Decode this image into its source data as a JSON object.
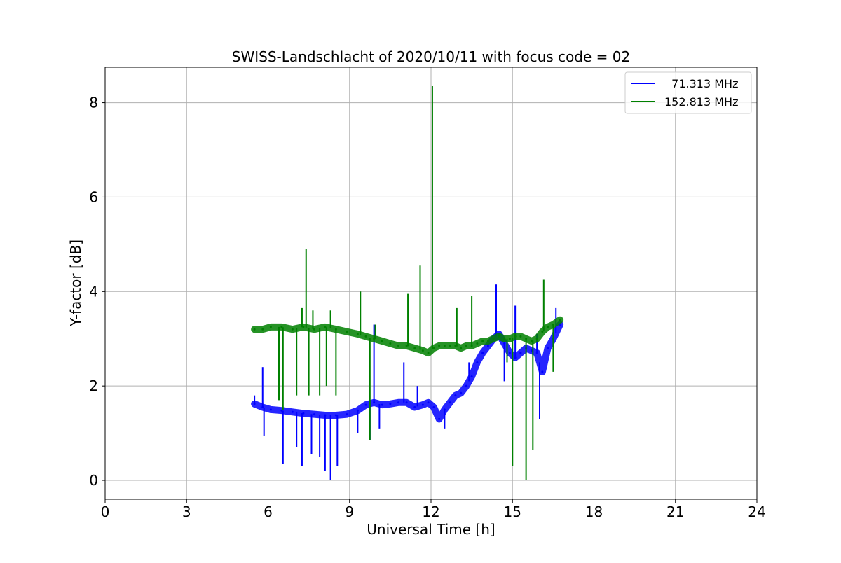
{
  "chart_data": {
    "type": "line",
    "title": "SWISS-Landschlacht of 2020/10/11 with focus code = 02",
    "xlabel": "Universal Time [h]",
    "ylabel": "Y-factor [dB]",
    "xlim": [
      0,
      24
    ],
    "ylim": [
      -0.4,
      8.75
    ],
    "xticks": [
      0,
      3,
      6,
      9,
      12,
      15,
      18,
      21,
      24
    ],
    "xtick_labels": [
      "0",
      "3",
      "6",
      "9",
      "12",
      "15",
      "18",
      "21",
      "24"
    ],
    "yticks": [
      0,
      2,
      4,
      6,
      8
    ],
    "ytick_labels": [
      "0",
      "2",
      "4",
      "6",
      "8"
    ],
    "grid": true,
    "legend_position": "upper right",
    "series": [
      {
        "name": "71.313 MHz",
        "label": "  71.313 MHz",
        "color": "#0000ff",
        "x": [
          5.5,
          5.8,
          6.1,
          6.5,
          6.9,
          7.3,
          7.7,
          8.1,
          8.5,
          8.9,
          9.3,
          9.6,
          9.9,
          10.2,
          10.5,
          10.8,
          11.1,
          11.4,
          11.7,
          11.9,
          12.1,
          12.3,
          12.5,
          12.7,
          12.9,
          13.1,
          13.3,
          13.5,
          13.7,
          13.9,
          14.1,
          14.3,
          14.5,
          14.7,
          14.9,
          15.1,
          15.3,
          15.5,
          15.7,
          15.9,
          16.1,
          16.3,
          16.5,
          16.75
        ],
        "y": [
          1.62,
          1.55,
          1.5,
          1.48,
          1.45,
          1.42,
          1.4,
          1.38,
          1.38,
          1.4,
          1.48,
          1.6,
          1.65,
          1.6,
          1.62,
          1.65,
          1.65,
          1.55,
          1.6,
          1.65,
          1.55,
          1.3,
          1.5,
          1.65,
          1.8,
          1.85,
          2.0,
          2.2,
          2.5,
          2.7,
          2.85,
          3.0,
          3.1,
          2.9,
          2.7,
          2.6,
          2.7,
          2.8,
          2.75,
          2.7,
          2.3,
          2.8,
          3.0,
          3.3
        ],
        "spikes": [
          {
            "x": 5.5,
            "y": 1.8
          },
          {
            "x": 5.8,
            "y": 2.4
          },
          {
            "x": 5.85,
            "y": 0.95
          },
          {
            "x": 6.55,
            "y": 0.35
          },
          {
            "x": 7.05,
            "y": 0.7
          },
          {
            "x": 7.25,
            "y": 0.3
          },
          {
            "x": 7.6,
            "y": 0.55
          },
          {
            "x": 7.9,
            "y": 0.5
          },
          {
            "x": 8.1,
            "y": 0.2
          },
          {
            "x": 8.3,
            "y": 0.0
          },
          {
            "x": 8.55,
            "y": 0.3
          },
          {
            "x": 9.3,
            "y": 1.0
          },
          {
            "x": 9.75,
            "y": 0.85
          },
          {
            "x": 9.9,
            "y": 3.3
          },
          {
            "x": 10.1,
            "y": 1.1
          },
          {
            "x": 11.0,
            "y": 2.5
          },
          {
            "x": 11.5,
            "y": 2.0
          },
          {
            "x": 12.5,
            "y": 1.1
          },
          {
            "x": 13.4,
            "y": 2.5
          },
          {
            "x": 14.4,
            "y": 4.15
          },
          {
            "x": 14.7,
            "y": 2.1
          },
          {
            "x": 15.1,
            "y": 3.7
          },
          {
            "x": 15.9,
            "y": 3.1
          },
          {
            "x": 16.0,
            "y": 1.3
          },
          {
            "x": 16.6,
            "y": 3.65
          }
        ]
      },
      {
        "name": "152.813 MHz",
        "label": "152.813 MHz",
        "color": "#008000",
        "x": [
          5.5,
          5.8,
          6.1,
          6.5,
          6.9,
          7.3,
          7.7,
          8.1,
          8.5,
          8.9,
          9.3,
          9.6,
          9.9,
          10.2,
          10.5,
          10.8,
          11.1,
          11.4,
          11.7,
          11.9,
          12.1,
          12.3,
          12.5,
          12.7,
          12.9,
          13.1,
          13.3,
          13.5,
          13.7,
          13.9,
          14.1,
          14.3,
          14.5,
          14.7,
          14.9,
          15.1,
          15.3,
          15.5,
          15.7,
          15.9,
          16.1,
          16.3,
          16.5,
          16.75
        ],
        "y": [
          3.2,
          3.2,
          3.25,
          3.25,
          3.2,
          3.25,
          3.2,
          3.25,
          3.2,
          3.15,
          3.1,
          3.05,
          3.0,
          2.95,
          2.9,
          2.85,
          2.85,
          2.8,
          2.75,
          2.7,
          2.8,
          2.85,
          2.85,
          2.85,
          2.85,
          2.8,
          2.85,
          2.85,
          2.9,
          2.95,
          2.95,
          3.0,
          3.05,
          3.0,
          3.0,
          3.05,
          3.05,
          3.0,
          2.95,
          3.0,
          3.15,
          3.25,
          3.3,
          3.4
        ],
        "spikes": [
          {
            "x": 6.4,
            "y": 1.7
          },
          {
            "x": 6.55,
            "y": 1.5
          },
          {
            "x": 7.05,
            "y": 1.8
          },
          {
            "x": 7.25,
            "y": 3.65
          },
          {
            "x": 7.4,
            "y": 4.9
          },
          {
            "x": 7.5,
            "y": 1.8
          },
          {
            "x": 7.65,
            "y": 3.6
          },
          {
            "x": 7.9,
            "y": 1.8
          },
          {
            "x": 8.15,
            "y": 2.0
          },
          {
            "x": 8.3,
            "y": 3.6
          },
          {
            "x": 8.5,
            "y": 1.8
          },
          {
            "x": 9.4,
            "y": 4.0
          },
          {
            "x": 9.75,
            "y": 0.85
          },
          {
            "x": 9.95,
            "y": 3.3
          },
          {
            "x": 11.15,
            "y": 3.95
          },
          {
            "x": 11.6,
            "y": 4.55
          },
          {
            "x": 12.05,
            "y": 8.35
          },
          {
            "x": 12.95,
            "y": 3.65
          },
          {
            "x": 13.5,
            "y": 3.9
          },
          {
            "x": 14.8,
            "y": 2.5
          },
          {
            "x": 15.0,
            "y": 0.3
          },
          {
            "x": 15.5,
            "y": 0.0
          },
          {
            "x": 15.75,
            "y": 0.65
          },
          {
            "x": 16.15,
            "y": 4.25
          },
          {
            "x": 16.5,
            "y": 2.3
          }
        ]
      }
    ]
  }
}
